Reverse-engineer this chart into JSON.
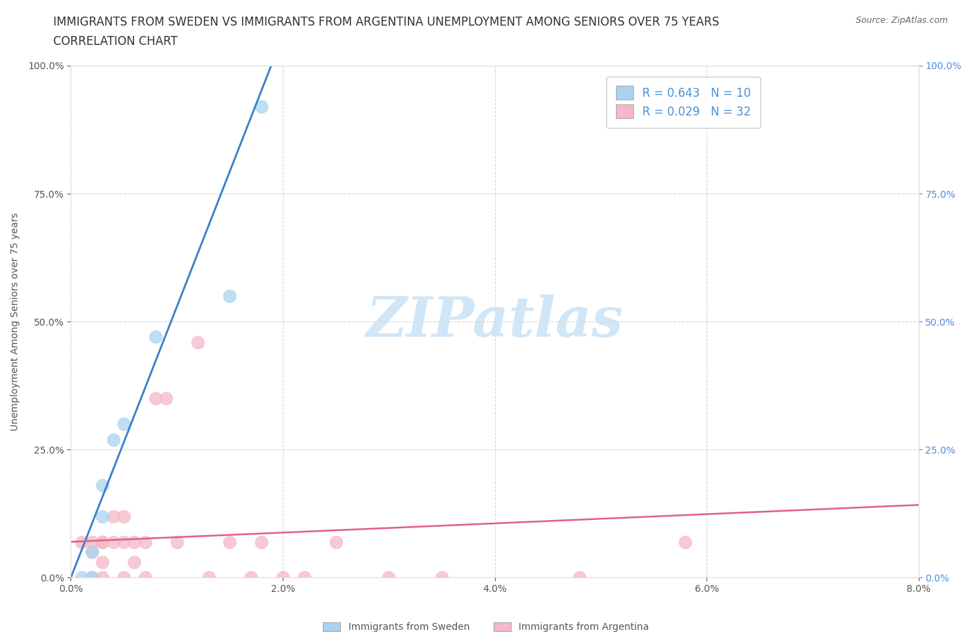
{
  "title_line1": "IMMIGRANTS FROM SWEDEN VS IMMIGRANTS FROM ARGENTINA UNEMPLOYMENT AMONG SENIORS OVER 75 YEARS",
  "title_line2": "CORRELATION CHART",
  "source_text": "Source: ZipAtlas.com",
  "xlabel": "Immigrants from Sweden",
  "xlabel2": "Immigrants from Argentina",
  "ylabel": "Unemployment Among Seniors over 75 years",
  "xlim": [
    0.0,
    0.08
  ],
  "ylim": [
    0.0,
    1.0
  ],
  "sweden_scatter": [
    [
      0.001,
      0.0
    ],
    [
      0.002,
      0.0
    ],
    [
      0.002,
      0.05
    ],
    [
      0.003,
      0.12
    ],
    [
      0.003,
      0.18
    ],
    [
      0.004,
      0.27
    ],
    [
      0.005,
      0.3
    ],
    [
      0.008,
      0.47
    ],
    [
      0.015,
      0.55
    ],
    [
      0.018,
      0.92
    ]
  ],
  "argentina_scatter": [
    [
      0.001,
      0.07
    ],
    [
      0.002,
      0.07
    ],
    [
      0.002,
      0.05
    ],
    [
      0.002,
      0.0
    ],
    [
      0.003,
      0.07
    ],
    [
      0.003,
      0.07
    ],
    [
      0.003,
      0.03
    ],
    [
      0.003,
      0.0
    ],
    [
      0.004,
      0.12
    ],
    [
      0.004,
      0.07
    ],
    [
      0.005,
      0.12
    ],
    [
      0.005,
      0.07
    ],
    [
      0.005,
      0.0
    ],
    [
      0.006,
      0.07
    ],
    [
      0.006,
      0.03
    ],
    [
      0.007,
      0.07
    ],
    [
      0.007,
      0.0
    ],
    [
      0.008,
      0.35
    ],
    [
      0.009,
      0.35
    ],
    [
      0.01,
      0.07
    ],
    [
      0.012,
      0.46
    ],
    [
      0.013,
      0.0
    ],
    [
      0.015,
      0.07
    ],
    [
      0.017,
      0.0
    ],
    [
      0.018,
      0.07
    ],
    [
      0.02,
      0.0
    ],
    [
      0.022,
      0.0
    ],
    [
      0.025,
      0.07
    ],
    [
      0.03,
      0.0
    ],
    [
      0.035,
      0.0
    ],
    [
      0.048,
      0.0
    ],
    [
      0.058,
      0.07
    ]
  ],
  "sweden_color": "#a8d4f0",
  "argentina_color": "#f4b8c8",
  "sweden_line_color": "#3a7ec8",
  "argentina_line_color": "#e06080",
  "sweden_R": 0.643,
  "sweden_N": 10,
  "argentina_R": 0.029,
  "argentina_N": 32,
  "legend_text_color": "#4a90d9",
  "watermark": "ZIPatlas",
  "watermark_color": "#cce4f5",
  "background_color": "#ffffff",
  "grid_color": "#cccccc",
  "ytick_labels_left": [
    "0.0%",
    "25.0%",
    "50.0%",
    "75.0%",
    "100.0%"
  ],
  "ytick_labels_right": [
    "0.0%",
    "25.0%",
    "50.0%",
    "75.0%",
    "100.0%"
  ],
  "xtick_labels": [
    "0.0%",
    "2.0%",
    "4.0%",
    "6.0%",
    "8.0%"
  ],
  "title_fontsize": 12,
  "axis_label_fontsize": 10,
  "tick_fontsize": 10,
  "legend_fontsize": 12,
  "sweden_reg_slope": 55.0,
  "sweden_reg_intercept": -0.04,
  "argentina_reg_slope": 0.9,
  "argentina_reg_intercept": 0.07
}
